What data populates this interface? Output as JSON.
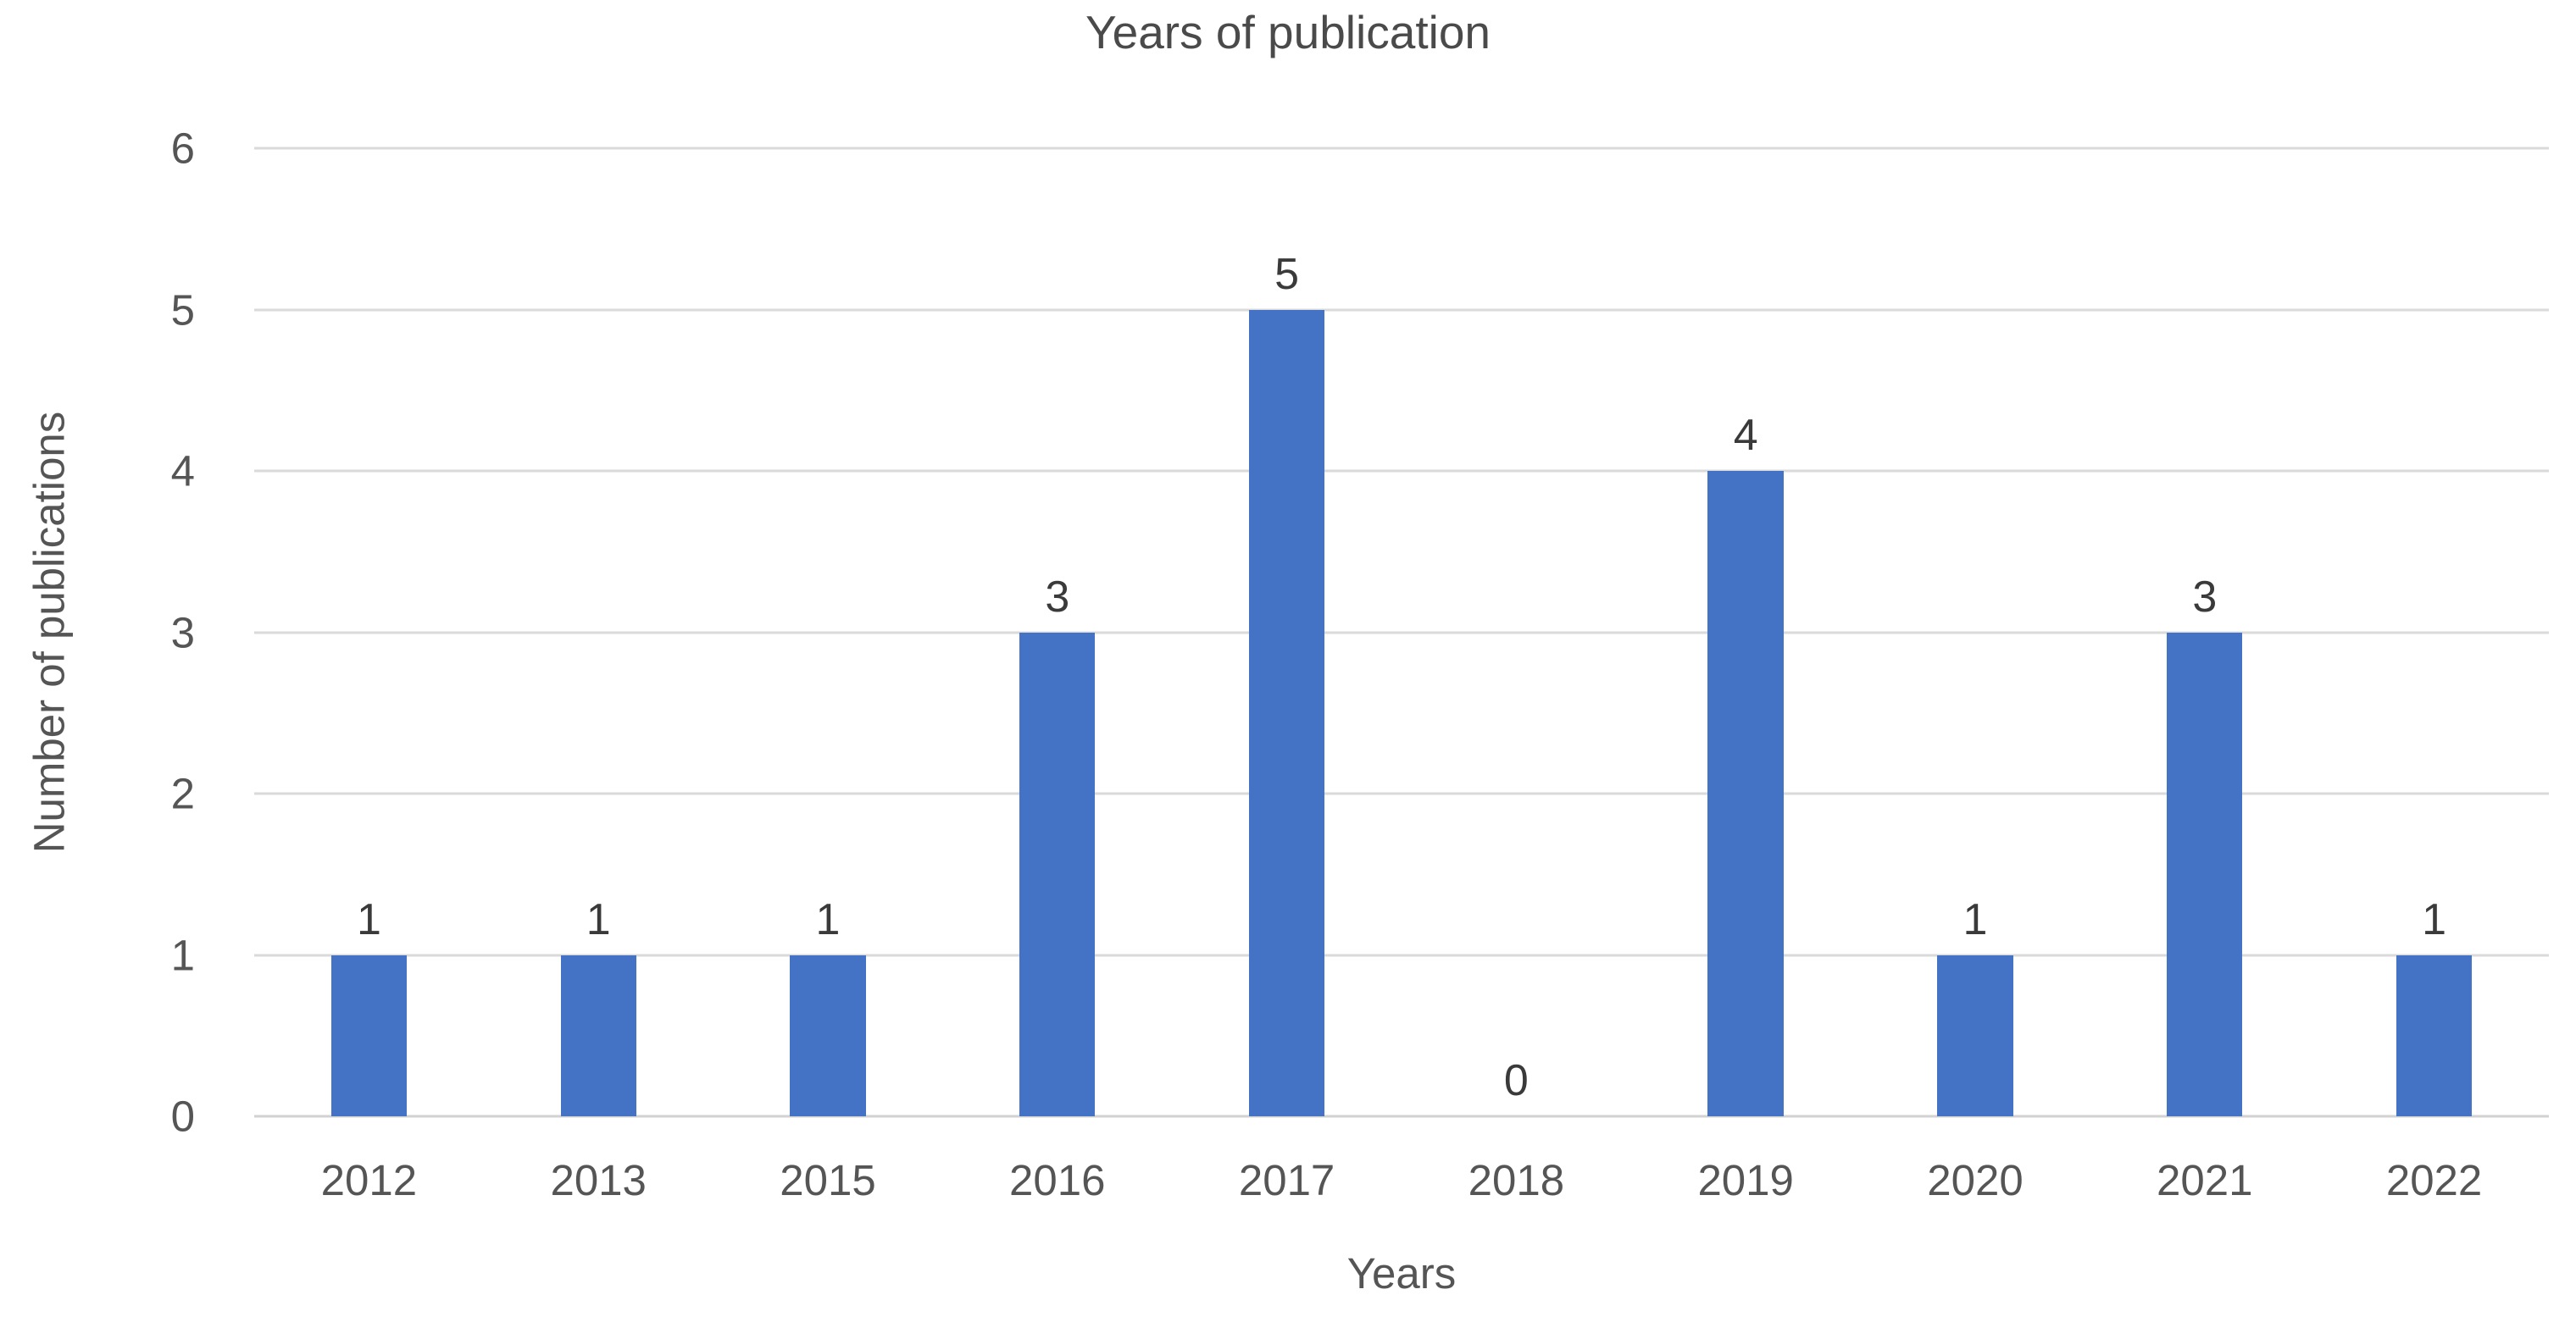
{
  "chart_data": {
    "type": "bar",
    "title": "Years of publication",
    "xlabel": "Years",
    "ylabel": "Number of publications",
    "categories": [
      "2012",
      "2013",
      "2015",
      "2016",
      "2017",
      "2018",
      "2019",
      "2020",
      "2021",
      "2022"
    ],
    "values": [
      1,
      1,
      1,
      3,
      5,
      0,
      4,
      1,
      3,
      1
    ],
    "data_labels": [
      1,
      1,
      1,
      3,
      5,
      0,
      4,
      1,
      3,
      1
    ],
    "ylim": [
      0,
      6
    ],
    "yticks": [
      0,
      1,
      2,
      3,
      4,
      5,
      6
    ],
    "grid": "horizontal",
    "legend": "none",
    "colors": {
      "bar": "#4472C4",
      "gridline": "#DADADA",
      "axis_text": "#555555",
      "data_label_text": "#3A3A3A",
      "title_text": "#4A4A4A",
      "background": "#FFFFFF"
    }
  }
}
